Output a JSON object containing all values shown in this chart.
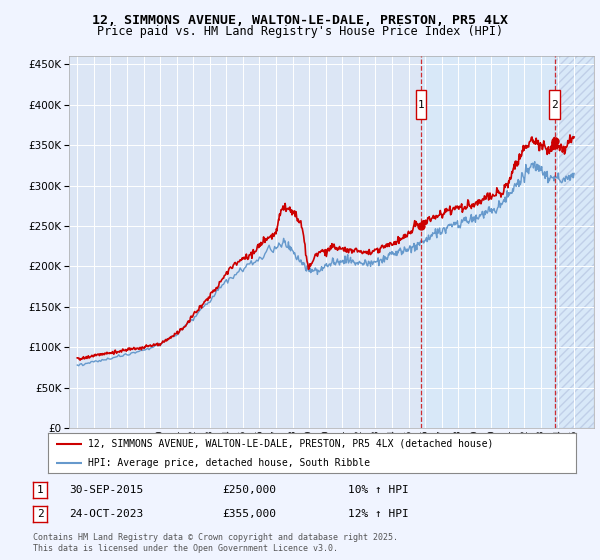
{
  "title1": "12, SIMMONS AVENUE, WALTON-LE-DALE, PRESTON, PR5 4LX",
  "title2": "Price paid vs. HM Land Registry's House Price Index (HPI)",
  "legend_line1": "12, SIMMONS AVENUE, WALTON-LE-DALE, PRESTON, PR5 4LX (detached house)",
  "legend_line2": "HPI: Average price, detached house, South Ribble",
  "annotation1": {
    "label": "1",
    "date": "30-SEP-2015",
    "price": "£250,000",
    "hpi": "10% ↑ HPI"
  },
  "annotation2": {
    "label": "2",
    "date": "24-OCT-2023",
    "price": "£355,000",
    "hpi": "12% ↑ HPI"
  },
  "footnote": "Contains HM Land Registry data © Crown copyright and database right 2025.\nThis data is licensed under the Open Government Licence v3.0.",
  "bg_color": "#f0f4ff",
  "plot_bg": "#dce6f5",
  "red_color": "#cc0000",
  "blue_color": "#6699cc",
  "shade_color": "#d0dff5",
  "ann1_x": 2015.75,
  "ann2_x": 2023.83,
  "ylim": [
    0,
    460000
  ],
  "xlim_min": 1994.5,
  "xlim_max": 2026.2
}
